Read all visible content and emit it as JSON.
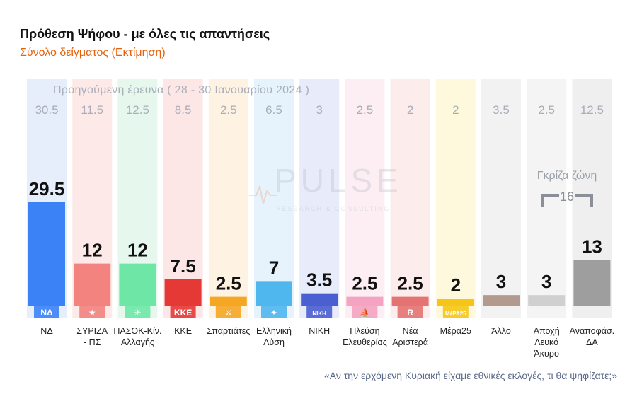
{
  "header": {
    "title": "Πρόθεση Ψήφου - με όλες τις απαντήσεις",
    "subtitle": "Σύνολο δείγματος   (Εκτίμηση)",
    "prev_caption": "Προηγούμενη έρευνα ( 28 - 30 Ιανουαρίου 2024 )"
  },
  "footnote": "«Αν την ερχόμενη Κυριακή είχαμε εθνικές εκλογές, τι θα ψηφίζατε;»",
  "watermark": {
    "main": "PULSE",
    "sub": "RESEARCH & CONSULTING"
  },
  "gray_zone": {
    "title": "Γκρίζα ζώνη",
    "value": "16"
  },
  "colors": {
    "title": "#111111",
    "subtitle": "#e8600a",
    "prev": "#a9aeb8",
    "footnote": "#5b6a8a"
  },
  "chart_data": {
    "type": "bar",
    "categories": [
      "ΝΔ",
      "ΣΥΡΙΖΑ - ΠΣ",
      "ΠΑΣΟΚ-Κιν. Αλλαγής",
      "ΚΚΕ",
      "Σπαρτιάτες",
      "Ελληνική Λύση",
      "ΝΙΚΗ",
      "Πλεύση Ελευθερίας",
      "Νέα Αριστερά",
      "Μέρα25",
      "Άλλο",
      "Αποχή Λευκό Άκυρο",
      "Αναποφάσ. ΔΑ"
    ],
    "category_lines": [
      [
        "ΝΔ"
      ],
      [
        "ΣΥΡΙΖΑ",
        "- ΠΣ"
      ],
      [
        "ΠΑΣΟΚ-Κίν.",
        "Αλλαγής"
      ],
      [
        "ΚΚΕ"
      ],
      [
        "Σπαρτιάτες"
      ],
      [
        "Ελληνική",
        "Λύση"
      ],
      [
        "ΝΙΚΗ"
      ],
      [
        "Πλεύση",
        "Ελευθερίας"
      ],
      [
        "Νέα",
        "Αριστερά"
      ],
      [
        "Μέρα25"
      ],
      [
        "Άλλο"
      ],
      [
        "Αποχή",
        "Λευκό",
        "Άκυρο"
      ],
      [
        "Αναποφάσ.",
        "ΔΑ"
      ]
    ],
    "series": [
      {
        "name": "Εκτίμηση",
        "values": [
          29.5,
          12,
          12,
          7.5,
          2.5,
          7,
          3.5,
          2.5,
          2.5,
          2,
          3,
          3,
          13
        ],
        "labels": [
          "29.5",
          "12",
          "12",
          "7.5",
          "2.5",
          "7",
          "3.5",
          "2.5",
          "2.5",
          "2",
          "3",
          "3",
          "13"
        ]
      },
      {
        "name": "Προηγούμενη έρευνα ( 28 - 30 Ιανουαρίου 2024 )",
        "values": [
          30.5,
          11.5,
          12.5,
          8.5,
          2.5,
          6.5,
          3,
          2.5,
          2,
          2,
          3.5,
          2.5,
          12.5
        ],
        "labels": [
          "30.5",
          "11.5",
          "12.5",
          "8.5",
          "2.5",
          "6.5",
          "3",
          "2.5",
          "2",
          "2",
          "3.5",
          "2.5",
          "12.5"
        ]
      }
    ],
    "bar_colors": [
      "#3b82f6",
      "#f2837e",
      "#6ee7a6",
      "#e53935",
      "#f5a623",
      "#4fb6ee",
      "#4a5fd0",
      "#f4a3c0",
      "#e57373",
      "#f5c518",
      "#b29a8e",
      "#d0d0d0",
      "#9e9e9e"
    ],
    "column_tints": [
      "#e6eefc",
      "#fde9e8",
      "#e6f8ee",
      "#fde6e6",
      "#fef3e2",
      "#e6f3fc",
      "#e8ebfa",
      "#fdeef3",
      "#fdecec",
      "#fef9dc",
      "#f2f2f2",
      "#f4f4f4",
      "#efefef"
    ],
    "logos": [
      "ΝΔ",
      "★",
      "☀",
      "ΚΚΕ",
      "⚔",
      "✦",
      "ΝΙΚΗ",
      "⛵",
      "R",
      "ΜέΡΑ25",
      "",
      "",
      ""
    ],
    "ylim": [
      0,
      32
    ],
    "grid": false
  }
}
